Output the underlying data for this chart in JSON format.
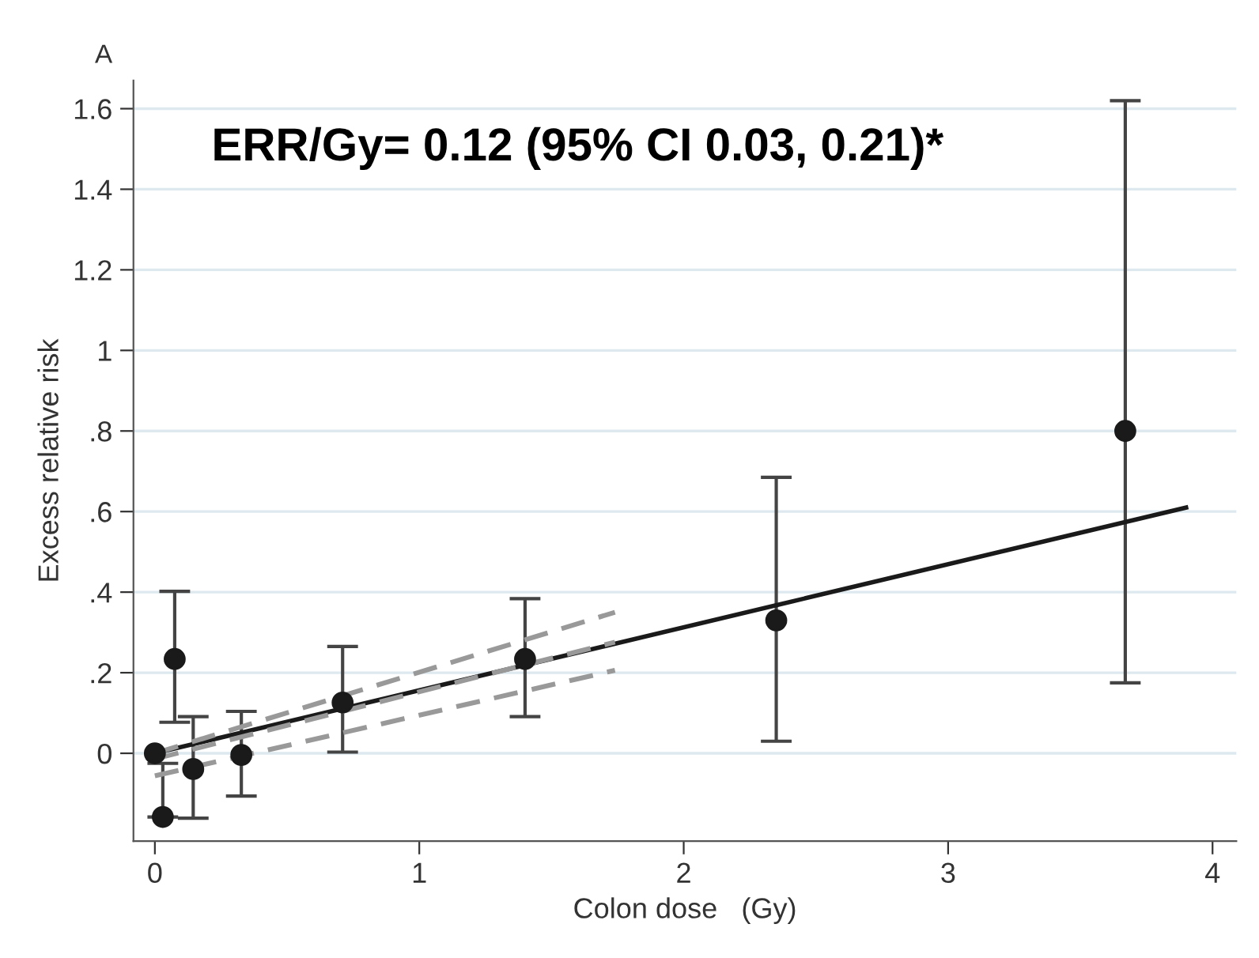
{
  "chart_data": {
    "type": "scatter",
    "title": "A",
    "xlabel": "Colon dose   (Gy)",
    "ylabel": "Excess relative risk",
    "annotations": [
      "ERR/Gy= 0.12 (95% CI 0.03, 0.21)*"
    ],
    "series": [
      {
        "color": "#1a1a1a",
        "marker": "circle",
        "x": [
          0,
          0.03,
          0.075,
          0.145,
          0.327,
          0.71,
          1.4,
          2.35,
          3.67
        ],
        "values": [
          0,
          -0.158,
          0.234,
          -0.039,
          -0.004,
          0.126,
          0.234,
          0.33,
          0.8
        ],
        "errors": [
          null,
          [
            -0.158,
            -0.025
          ],
          [
            0.077,
            0.402
          ],
          [
            -0.161,
            0.091
          ],
          [
            -0.106,
            0.104
          ],
          [
            0.003,
            0.265
          ],
          [
            0.091,
            0.384
          ],
          [
            0.03,
            0.685
          ],
          [
            0.175,
            1.62
          ]
        ]
      },
      {
        "type": "line",
        "color": "#1a1a1a",
        "line_style": "solid",
        "x": [
          0,
          3.9
        ],
        "values": [
          0,
          0.61
        ]
      },
      {
        "type": "line",
        "color": "#999999",
        "line_style": "dashed",
        "x": [
          0,
          1.74
        ],
        "values": [
          -0.014,
          0.276
        ]
      },
      {
        "type": "line",
        "color": "#999999",
        "line_style": "dashed",
        "x": [
          0,
          1.74
        ],
        "values": [
          0,
          0.35
        ]
      },
      {
        "type": "line",
        "color": "#999999",
        "line_style": "dashed",
        "x": [
          0,
          1.74
        ],
        "values": [
          -0.056,
          0.206
        ]
      }
    ],
    "xlim": [
      -0.081,
      4.09
    ],
    "ylim": [
      -0.218,
      1.67
    ],
    "xticks": [
      0,
      1,
      2,
      3,
      4
    ],
    "yticks": [
      0,
      {
        "value": 0.2,
        "label": ".2"
      },
      {
        "value": 0.4,
        "label": ".4"
      },
      {
        "value": 0.6,
        "label": ".6"
      },
      {
        "value": 0.8,
        "label": ".8"
      },
      1,
      {
        "value": 1.2,
        "label": "1.2"
      },
      {
        "value": 1.4,
        "label": "1.4"
      },
      {
        "value": 1.6,
        "label": "1.6"
      }
    ],
    "grid": "y"
  }
}
